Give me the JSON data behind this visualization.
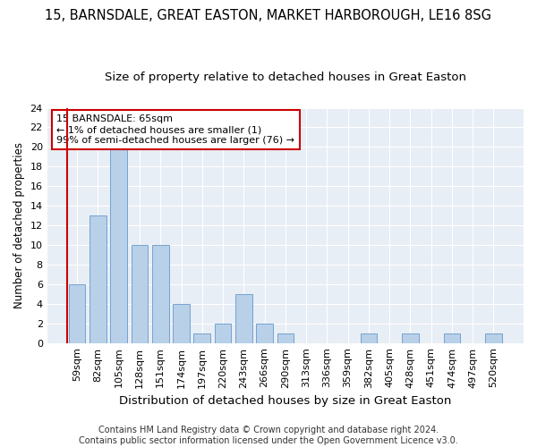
{
  "title1": "15, BARNSDALE, GREAT EASTON, MARKET HARBOROUGH, LE16 8SG",
  "title2": "Size of property relative to detached houses in Great Easton",
  "xlabel": "Distribution of detached houses by size in Great Easton",
  "ylabel": "Number of detached properties",
  "categories": [
    "59sqm",
    "82sqm",
    "105sqm",
    "128sqm",
    "151sqm",
    "174sqm",
    "197sqm",
    "220sqm",
    "243sqm",
    "266sqm",
    "290sqm",
    "313sqm",
    "336sqm",
    "359sqm",
    "382sqm",
    "405sqm",
    "428sqm",
    "451sqm",
    "474sqm",
    "497sqm",
    "520sqm"
  ],
  "values": [
    6,
    13,
    20,
    10,
    10,
    4,
    1,
    2,
    5,
    2,
    1,
    0,
    0,
    0,
    1,
    0,
    1,
    0,
    1,
    0,
    1
  ],
  "bar_color": "#b8d0e8",
  "bar_edge_color": "#6699cc",
  "annotation_line1": "15 BARNSDALE: 65sqm",
  "annotation_line2": "← 1% of detached houses are smaller (1)",
  "annotation_line3": "99% of semi-detached houses are larger (76) →",
  "annotation_box_color": "#ffffff",
  "annotation_box_edge_color": "#cc0000",
  "vline_color": "#cc0000",
  "ylim": [
    0,
    24
  ],
  "yticks": [
    0,
    2,
    4,
    6,
    8,
    10,
    12,
    14,
    16,
    18,
    20,
    22,
    24
  ],
  "bg_color": "#e8eef5",
  "footer_text": "Contains HM Land Registry data © Crown copyright and database right 2024.\nContains public sector information licensed under the Open Government Licence v3.0.",
  "title1_fontsize": 10.5,
  "title2_fontsize": 9.5,
  "xlabel_fontsize": 9.5,
  "ylabel_fontsize": 8.5,
  "tick_fontsize": 8,
  "annotation_fontsize": 8,
  "footer_fontsize": 7
}
